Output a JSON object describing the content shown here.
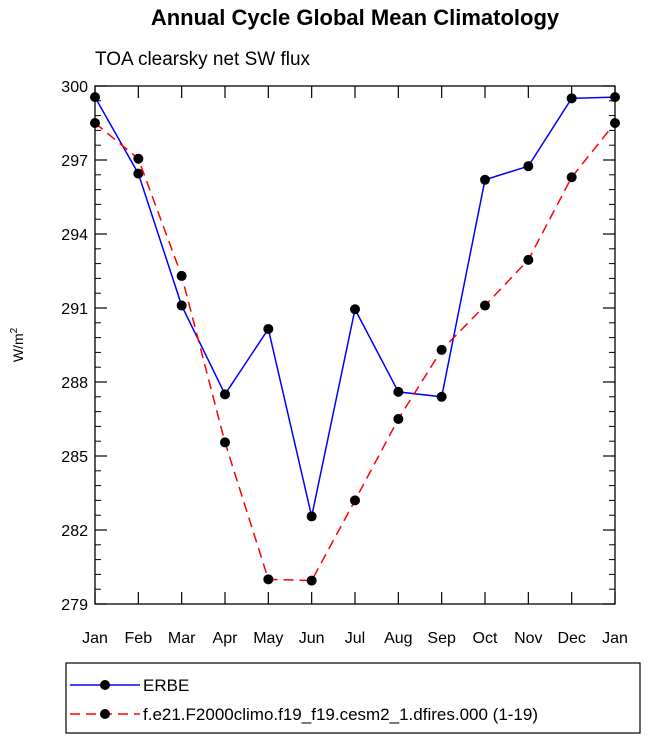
{
  "chart_data": {
    "type": "line",
    "title": "Annual Cycle Global Mean Climatology",
    "subtitle": "TOA clearsky net SW flux",
    "ylabel": "W/m",
    "ylabel_sup": "2",
    "categories": [
      "Jan",
      "Feb",
      "Mar",
      "Apr",
      "May",
      "Jun",
      "Jul",
      "Aug",
      "Sep",
      "Oct",
      "Nov",
      "Dec",
      "Jan"
    ],
    "yticks": [
      279,
      282,
      285,
      288,
      291,
      294,
      297,
      300
    ],
    "ylim": [
      279,
      300
    ],
    "series": [
      {
        "name": "ERBE",
        "color": "#0000ff",
        "dash": "solid",
        "values": [
          299.55,
          296.45,
          291.1,
          287.5,
          290.15,
          282.55,
          290.95,
          287.6,
          287.4,
          296.2,
          296.75,
          299.5,
          299.55
        ]
      },
      {
        "name": "f.e21.F2000climo.f19_f19.cesm2_1.dfires.000 (1-19)",
        "color": "#ff0000",
        "dash": "dashed",
        "values": [
          298.5,
          297.05,
          292.3,
          285.55,
          280.0,
          279.95,
          283.2,
          286.5,
          289.3,
          291.1,
          292.95,
          296.3,
          298.5
        ]
      }
    ]
  }
}
